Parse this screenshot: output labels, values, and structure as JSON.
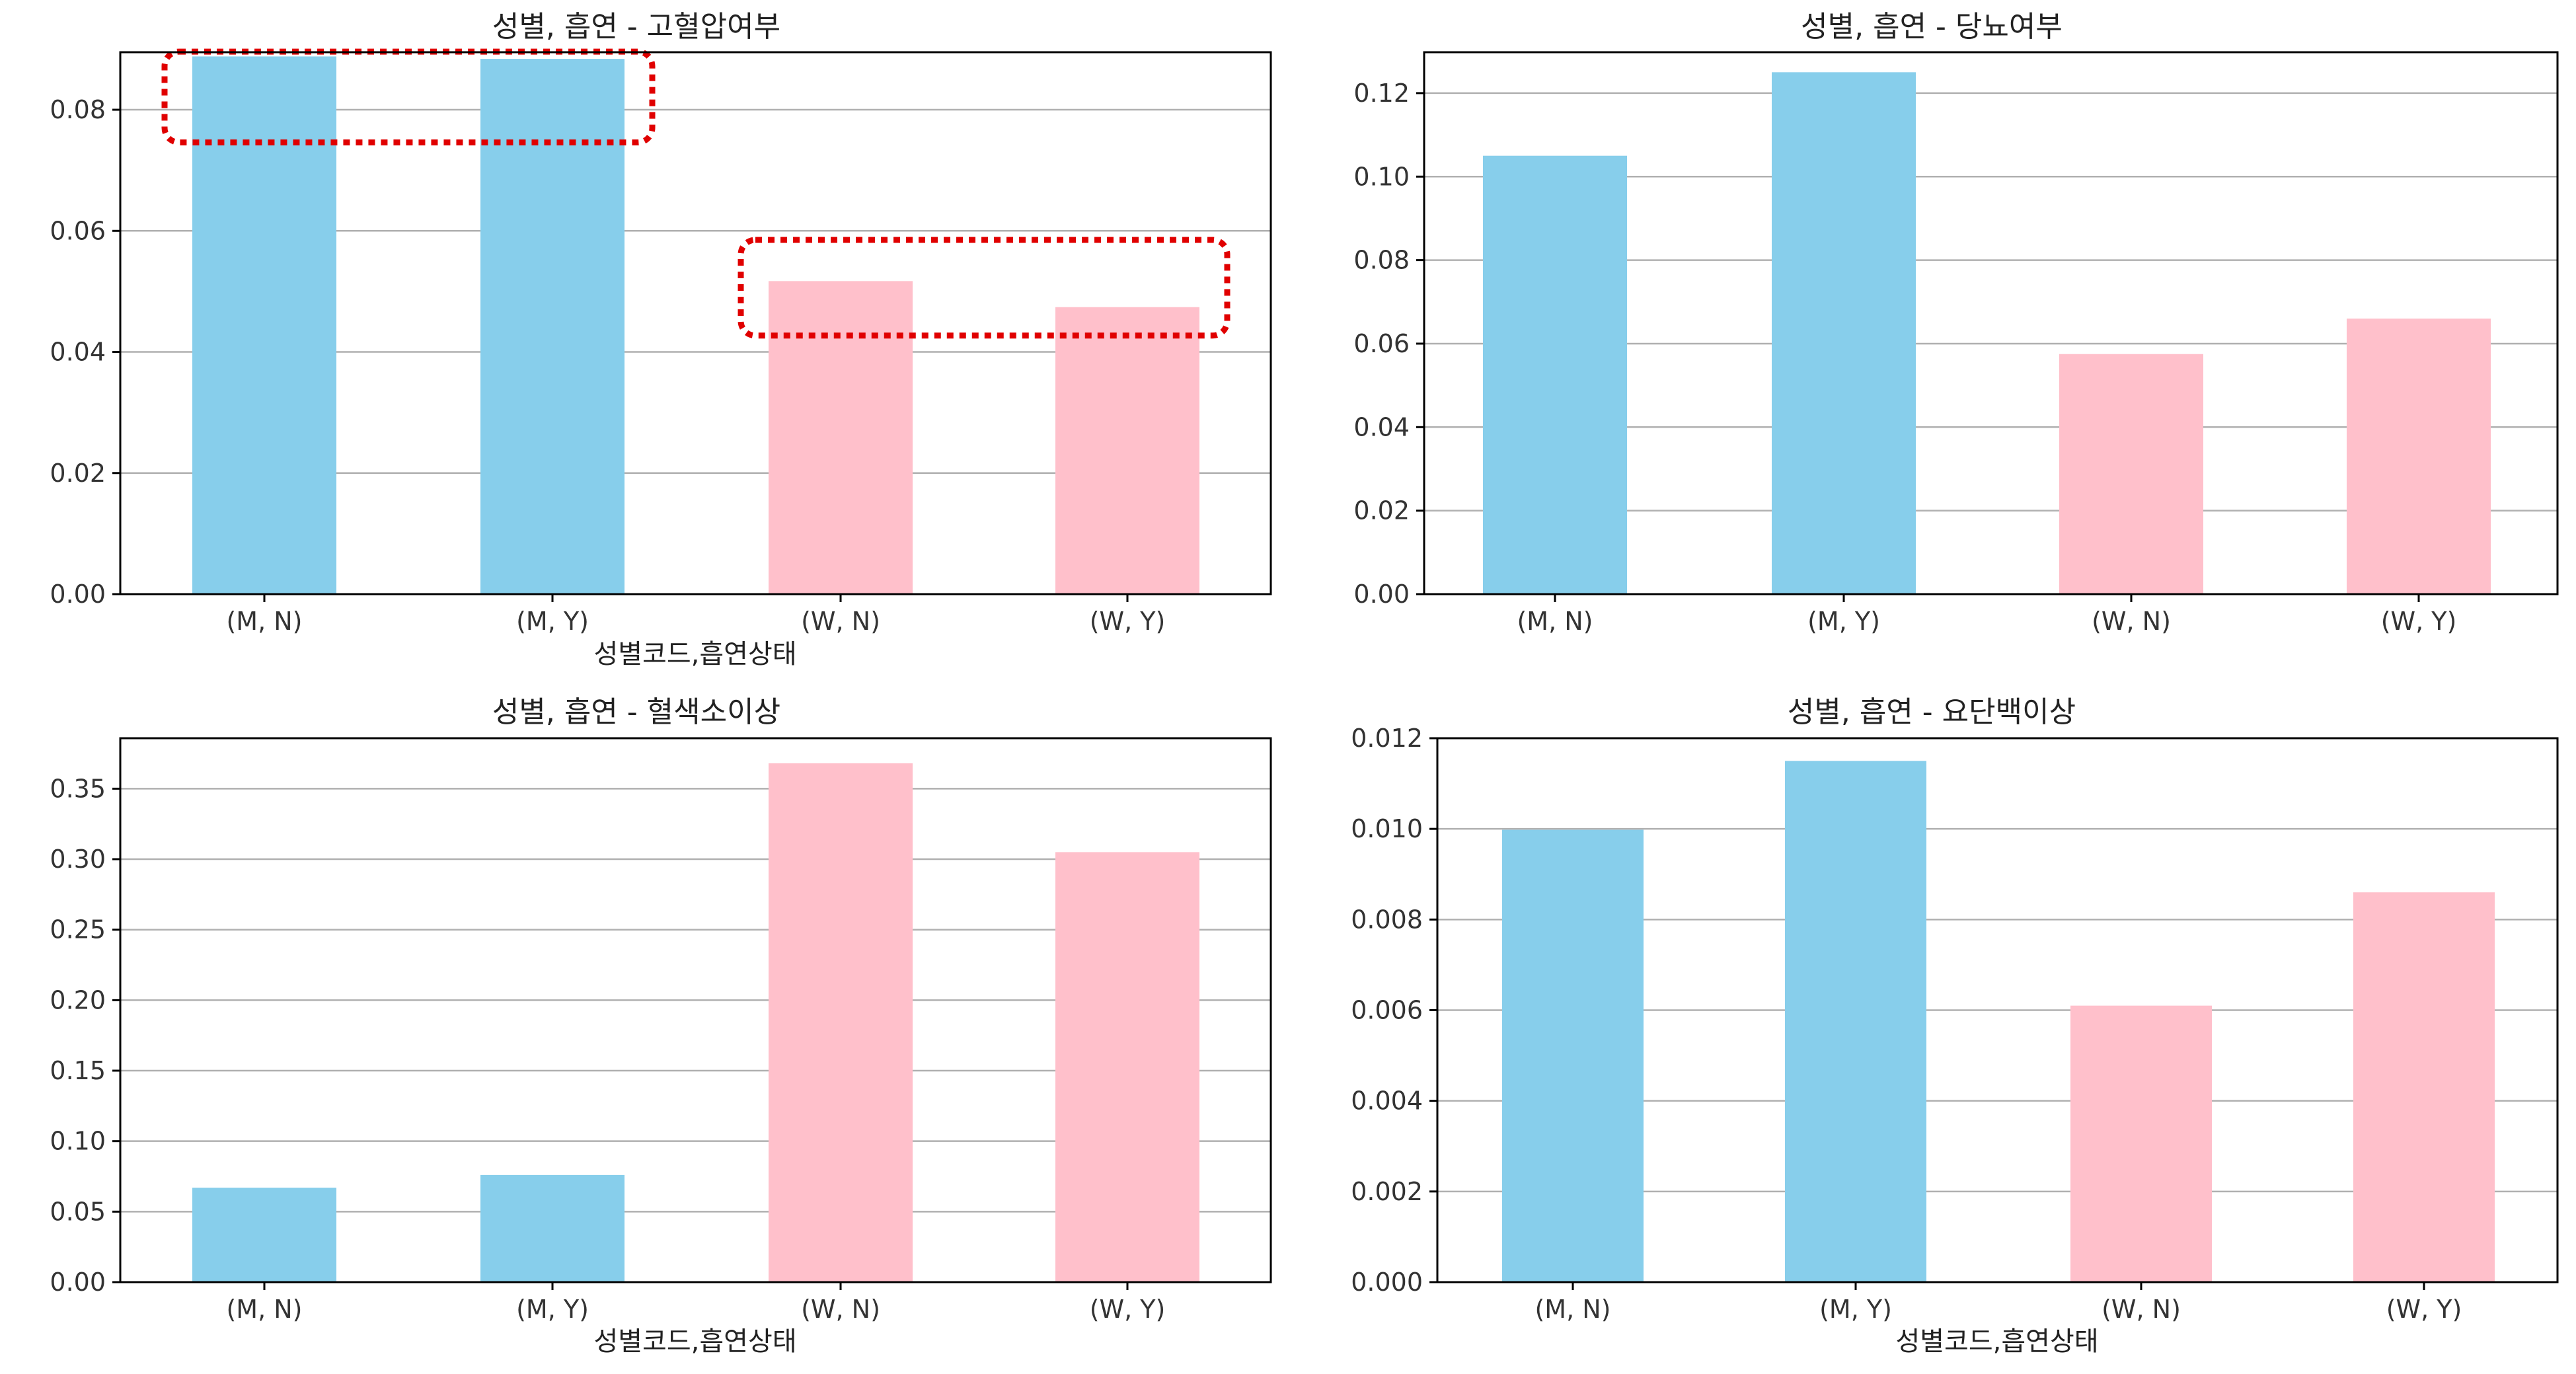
{
  "colors": {
    "male": "#87CEEB",
    "female": "#FFC0CB",
    "grid": "#b0b0b0",
    "axis": "#000000",
    "highlight": "#e00000"
  },
  "chart_data": [
    {
      "type": "bar",
      "title": "성별, 흡연 - 고혈압여부",
      "xlabel": "성별코드,흡연상태",
      "ylabel": "",
      "categories": [
        "(M, N)",
        "(M, Y)",
        "(W, N)",
        "(W, Y)"
      ],
      "values": [
        0.0888,
        0.0884,
        0.0517,
        0.0474
      ],
      "bar_colors": [
        "male",
        "male",
        "female",
        "female"
      ],
      "ylim": [
        0,
        0.0895
      ],
      "yticks": [
        0.0,
        0.02,
        0.04,
        0.06,
        0.08
      ],
      "ytick_labels": [
        "0.00",
        "0.02",
        "0.04",
        "0.06",
        "0.08"
      ],
      "grid": "y",
      "highlight_boxes": [
        {
          "from_category": 0,
          "to_category": 1,
          "y_range": [
            0.0746,
            0.0896
          ]
        },
        {
          "from_category": 2,
          "to_category": 3,
          "y_range": [
            0.0427,
            0.0585
          ]
        }
      ]
    },
    {
      "type": "bar",
      "title": "성별, 흡연 - 당뇨여부",
      "xlabel": "",
      "ylabel": "",
      "categories": [
        "(M, N)",
        "(M, Y)",
        "(W, N)",
        "(W, Y)"
      ],
      "values": [
        0.105,
        0.125,
        0.0575,
        0.066
      ],
      "bar_colors": [
        "male",
        "male",
        "female",
        "female"
      ],
      "ylim": [
        0,
        0.1298
      ],
      "yticks": [
        0.0,
        0.02,
        0.04,
        0.06,
        0.08,
        0.1,
        0.12
      ],
      "ytick_labels": [
        "0.00",
        "0.02",
        "0.04",
        "0.06",
        "0.08",
        "0.10",
        "0.12"
      ],
      "grid": "y"
    },
    {
      "type": "bar",
      "title": "성별, 흡연 - 혈색소이상",
      "xlabel": "성별코드,흡연상태",
      "ylabel": "",
      "categories": [
        "(M, N)",
        "(M, Y)",
        "(W, N)",
        "(W, Y)"
      ],
      "values": [
        0.067,
        0.076,
        0.368,
        0.305
      ],
      "bar_colors": [
        "male",
        "male",
        "female",
        "female"
      ],
      "ylim": [
        0,
        0.3858
      ],
      "yticks": [
        0.0,
        0.05,
        0.1,
        0.15,
        0.2,
        0.25,
        0.3,
        0.35
      ],
      "ytick_labels": [
        "0.00",
        "0.05",
        "0.10",
        "0.15",
        "0.20",
        "0.25",
        "0.30",
        "0.35"
      ],
      "grid": "y"
    },
    {
      "type": "bar",
      "title": "성별, 흡연 - 요단백이상",
      "xlabel": "성별코드,흡연상태",
      "ylabel": "",
      "categories": [
        "(M, N)",
        "(M, Y)",
        "(W, N)",
        "(W, Y)"
      ],
      "values": [
        0.00998,
        0.0115,
        0.0061,
        0.0086
      ],
      "bar_colors": [
        "male",
        "male",
        "female",
        "female"
      ],
      "ylim": [
        0,
        0.012
      ],
      "yticks": [
        0.0,
        0.002,
        0.004,
        0.006,
        0.008,
        0.01,
        0.012
      ],
      "ytick_labels": [
        "0.000",
        "0.002",
        "0.004",
        "0.006",
        "0.008",
        "0.010",
        "0.012"
      ],
      "grid": "y"
    }
  ]
}
